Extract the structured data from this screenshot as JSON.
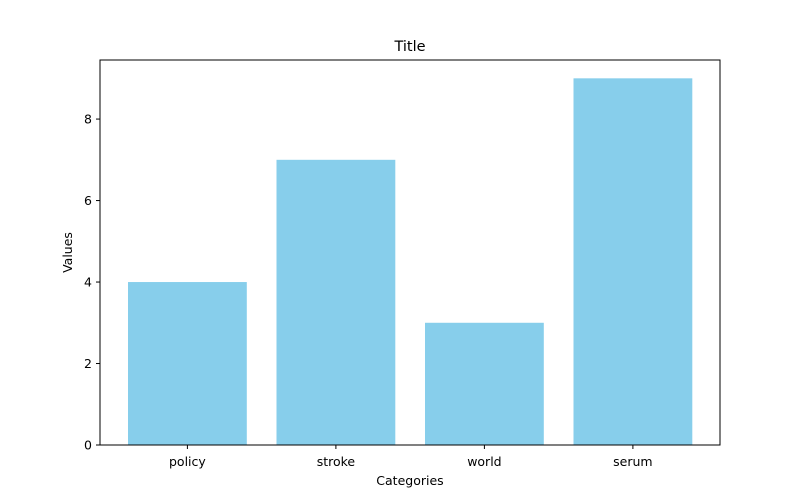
{
  "chart_data": {
    "type": "bar",
    "title": "Title",
    "xlabel": "Categories",
    "ylabel": "Values",
    "categories": [
      "policy",
      "stroke",
      "world",
      "serum"
    ],
    "values": [
      4,
      7,
      3,
      9
    ],
    "ylim": [
      0,
      9.45
    ],
    "yticks": [
      0,
      2,
      4,
      6,
      8
    ],
    "ytick_labels": [
      "0",
      "2",
      "4",
      "6",
      "8"
    ],
    "bar_color": "#87CEEB",
    "grid": false,
    "legend": "none"
  }
}
